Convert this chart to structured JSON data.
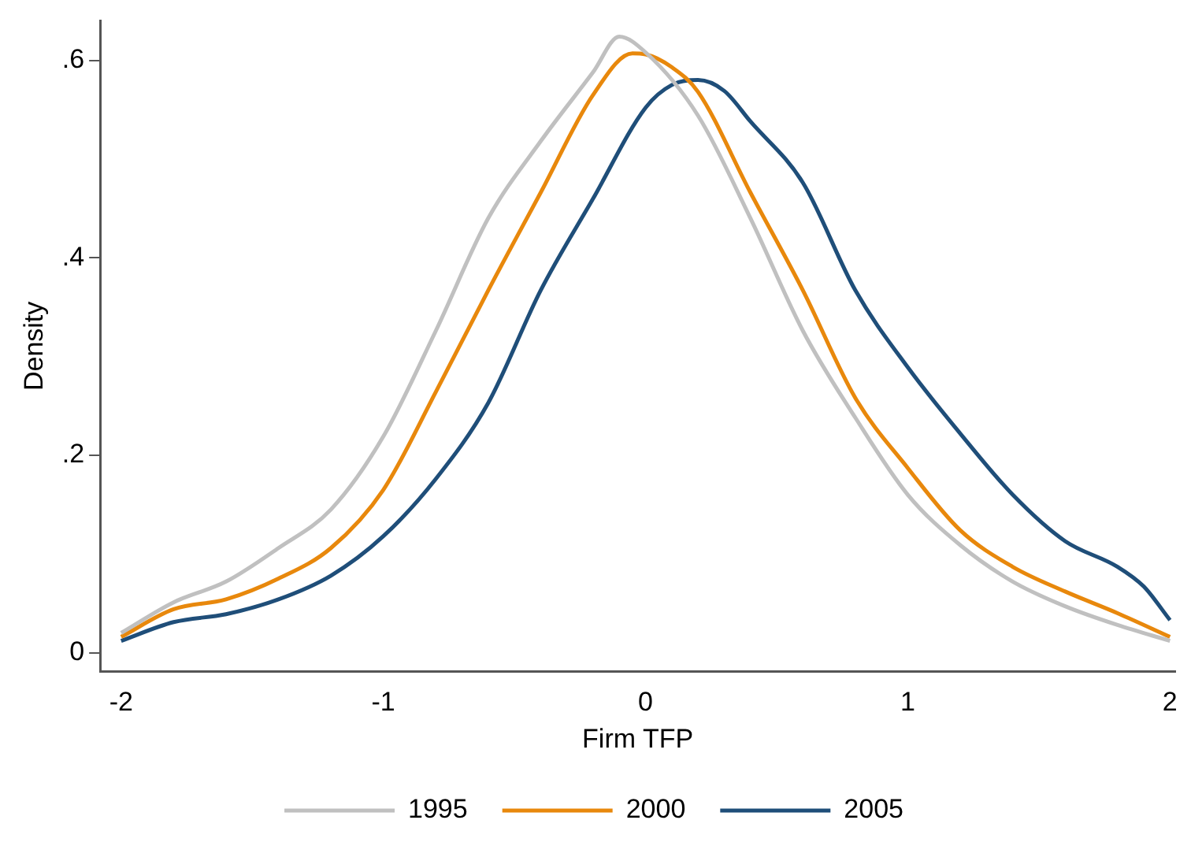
{
  "chart_data": {
    "type": "line",
    "xlabel": "Firm TFP",
    "ylabel": "Density",
    "xlim": [
      -2.08,
      2.02
    ],
    "ylim": [
      -0.019,
      0.64
    ],
    "xticks": [
      -2,
      -1,
      0,
      1,
      2
    ],
    "yticks": [
      {
        "value": 0,
        "label": "0"
      },
      {
        "value": 0.2,
        "label": ".2"
      },
      {
        "value": 0.4,
        "label": ".4"
      },
      {
        "value": 0.6,
        "label": ".6"
      }
    ],
    "grid": false,
    "legend": "bottom",
    "marker": "none",
    "line_style": "solid",
    "series": [
      {
        "name": "1995",
        "color": "#c0c0c0",
        "x": [
          -2,
          -1.8,
          -1.6,
          -1.4,
          -1.2,
          -1,
          -0.8,
          -0.6,
          -0.4,
          -0.2,
          -0.1,
          0,
          0.2,
          0.4,
          0.6,
          0.8,
          1,
          1.2,
          1.4,
          1.6,
          1.8,
          2
        ],
        "values": [
          0.02,
          0.051,
          0.072,
          0.106,
          0.145,
          0.219,
          0.326,
          0.44,
          0.518,
          0.588,
          0.624,
          0.608,
          0.544,
          0.44,
          0.326,
          0.238,
          0.16,
          0.109,
          0.072,
          0.047,
          0.028,
          0.012
        ]
      },
      {
        "name": "2000",
        "color": "#e8880c",
        "x": [
          -2,
          -1.8,
          -1.6,
          -1.4,
          -1.2,
          -1,
          -0.8,
          -0.6,
          -0.4,
          -0.2,
          -0.05,
          0,
          0.1,
          0.2,
          0.4,
          0.6,
          0.8,
          1,
          1.2,
          1.4,
          1.6,
          1.8,
          2
        ],
        "values": [
          0.016,
          0.044,
          0.054,
          0.075,
          0.106,
          0.165,
          0.264,
          0.367,
          0.466,
          0.565,
          0.607,
          0.606,
          0.593,
          0.568,
          0.466,
          0.367,
          0.258,
          0.187,
          0.124,
          0.087,
          0.062,
          0.04,
          0.016
        ]
      },
      {
        "name": "2005",
        "color": "#1f4e79",
        "x": [
          -2,
          -1.8,
          -1.6,
          -1.4,
          -1.2,
          -1,
          -0.8,
          -0.6,
          -0.4,
          -0.2,
          0,
          0.1,
          0.2,
          0.3,
          0.4,
          0.6,
          0.8,
          1,
          1.2,
          1.4,
          1.6,
          1.8,
          1.9,
          2
        ],
        "values": [
          0.012,
          0.031,
          0.039,
          0.054,
          0.078,
          0.118,
          0.176,
          0.253,
          0.367,
          0.46,
          0.552,
          0.575,
          0.58,
          0.569,
          0.538,
          0.476,
          0.367,
          0.289,
          0.222,
          0.16,
          0.113,
          0.087,
          0.067,
          0.033
        ]
      }
    ]
  }
}
